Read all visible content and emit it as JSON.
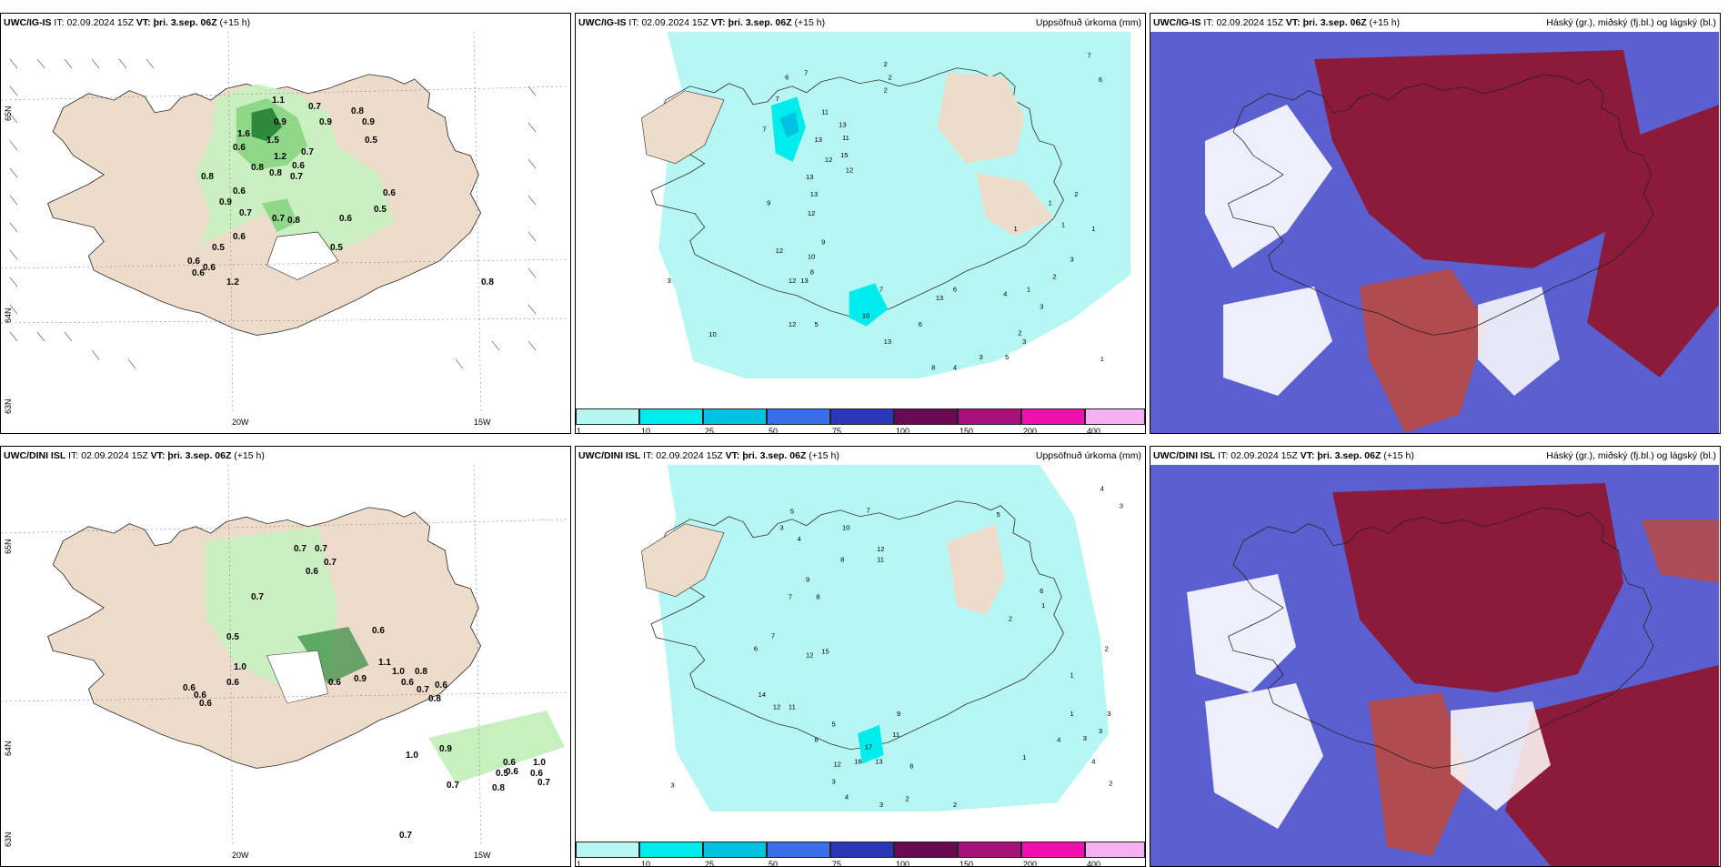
{
  "colors": {
    "land": "#eedccb",
    "sea": "#ffffff",
    "precip_light": "#b6f7f4",
    "precip_mid": "#00ecec",
    "precip_dark": "#00c2e0",
    "wind_green_light": "#c6f1bf",
    "wind_green_mid": "#8fd88a",
    "wind_green_dark": "#2e8a3a",
    "cloud_low": "#5c5fcf",
    "cloud_mid": "#c0483c",
    "cloud_high": "#8c1a3a"
  },
  "panels": [
    {
      "model": "UWC/IG-IS",
      "it_label": "IT:",
      "it_value": "02.09.2024 15Z",
      "vt_label": "VT:",
      "vt_value": "þri. 3.sep. 06Z",
      "lead": "(+15 h)",
      "right_title": "",
      "lat_labels": [
        "65N",
        "64N",
        "63N"
      ],
      "lon_labels": [
        "20W",
        "15W"
      ],
      "values": [
        "1.1",
        "0.7",
        "0.8",
        "0.9",
        "0.9",
        "0.9",
        "0.5",
        "1.6",
        "0.6",
        "1.5",
        "1.2",
        "0.7",
        "0.6",
        "0.8",
        "0.8",
        "0.8",
        "0.7",
        "0.6",
        "0.9",
        "0.7",
        "0.8",
        "0.7",
        "0.6",
        "0.5",
        "0.6",
        "0.5",
        "0.6",
        "0.6",
        "0.6",
        "1.2",
        "0.8",
        "0.6",
        "0.5"
      ]
    },
    {
      "model": "UWC/IG-IS",
      "it_label": "IT:",
      "it_value": "02.09.2024 15Z",
      "vt_label": "VT:",
      "vt_value": "þri. 3.sep. 06Z",
      "lead": "(+15 h)",
      "right_title": "Uppsöfnuð úrkoma (mm)",
      "colorbar_ticks": [
        "1",
        "10",
        "25",
        "50",
        "75",
        "100",
        "150",
        "200",
        "400"
      ],
      "colorbar_colors": [
        "#b6f7f4",
        "#00ecec",
        "#00c2e0",
        "#3a6ee8",
        "#2a38b8",
        "#6a0a50",
        "#a8107a",
        "#f010b0",
        "#f4b0f0"
      ],
      "values": [
        "6",
        "7",
        "2",
        "2",
        "11",
        "13",
        "11",
        "13",
        "15",
        "12",
        "12",
        "13",
        "13",
        "12",
        "12",
        "10",
        "9",
        "8",
        "12",
        "13",
        "7",
        "2",
        "7",
        "9",
        "13",
        "10",
        "5",
        "6",
        "10",
        "8",
        "4",
        "3",
        "5",
        "3",
        "4",
        "1",
        "7",
        "6",
        "2",
        "3",
        "1",
        "1",
        "12",
        "13",
        "2",
        "1",
        "3",
        "1",
        "2",
        "1",
        "6",
        "7",
        "3"
      ]
    },
    {
      "model": "UWC/IG-IS",
      "it_label": "IT:",
      "it_value": "02.09.2024 15Z",
      "vt_label": "VT:",
      "vt_value": "þri. 3.sep. 06Z",
      "lead": "(+15 h)",
      "right_title": "Háský (gr.), miðský (fj.bl.) og lágský (bl.)"
    },
    {
      "model": "UWC/DINI ISL",
      "it_label": "IT:",
      "it_value": "02.09.2024 15Z",
      "vt_label": "VT:",
      "vt_value": "þri. 3.sep. 06Z",
      "lead": "(+15 h)",
      "right_title": "",
      "lat_labels": [
        "65N",
        "64N",
        "63N"
      ],
      "lon_labels": [
        "20W",
        "15W"
      ],
      "values": [
        "0.7",
        "0.7",
        "0.7",
        "0.6",
        "0.7",
        "0.5",
        "0.6",
        "1.0",
        "0.6",
        "0.6",
        "0.6",
        "0.6",
        "0.6",
        "0.9",
        "1.1",
        "1.0",
        "0.8",
        "0.6",
        "0.7",
        "0.6",
        "0.8",
        "1.0",
        "0.9",
        "0.7",
        "0.6",
        "0.8",
        "0.5",
        "0.6",
        "0.6",
        "1.0",
        "0.7",
        "0.7"
      ]
    },
    {
      "model": "UWC/DINI ISL",
      "it_label": "IT:",
      "it_value": "02.09.2024 15Z",
      "vt_label": "VT:",
      "vt_value": "þri. 3.sep. 06Z",
      "lead": "(+15 h)",
      "right_title": "Uppsöfnuð úrkoma (mm)",
      "colorbar_ticks": [
        "1",
        "10",
        "25",
        "50",
        "75",
        "100",
        "150",
        "200",
        "400"
      ],
      "colorbar_colors": [
        "#b6f7f4",
        "#00ecec",
        "#00c2e0",
        "#3a6ee8",
        "#2a38b8",
        "#6a0a50",
        "#a8107a",
        "#f010b0",
        "#f4b0f0"
      ],
      "values": [
        "5",
        "7",
        "3",
        "4",
        "10",
        "12",
        "11",
        "8",
        "9",
        "8",
        "7",
        "15",
        "12",
        "14",
        "12",
        "11",
        "6",
        "7",
        "5",
        "8",
        "17",
        "12",
        "16",
        "13",
        "11",
        "9",
        "6",
        "3",
        "4",
        "2",
        "3",
        "2",
        "1",
        "4",
        "1",
        "3",
        "4",
        "3",
        "2",
        "3",
        "1",
        "2",
        "4",
        "3",
        "6",
        "1",
        "5",
        "2",
        "3"
      ]
    },
    {
      "model": "UWC/DINI ISL",
      "it_label": "IT:",
      "it_value": "02.09.2024 15Z",
      "vt_label": "VT:",
      "vt_value": "þri. 3.sep. 06Z",
      "lead": "(+15 h)",
      "right_title": "Háský (gr.), miðský (fj.bl.) og lágský (bl.)"
    }
  ]
}
